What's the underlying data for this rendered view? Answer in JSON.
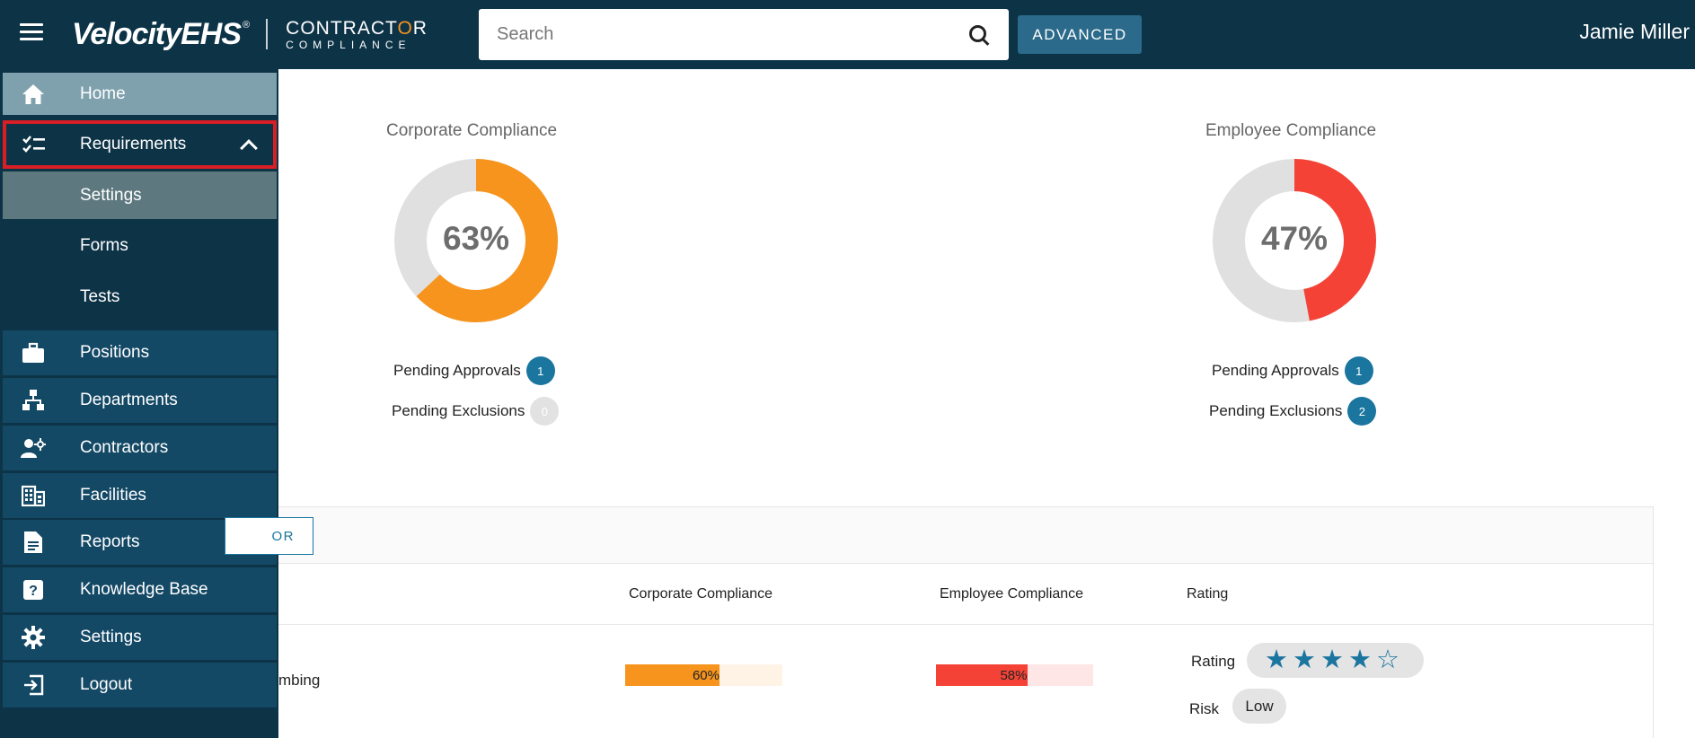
{
  "header": {
    "brand_name": "VelocityEHS",
    "brand_reg": "®",
    "product_line1_a": "CONTRACT",
    "product_line1_b": "O",
    "product_line1_c": "R",
    "product_line2": "COMPLIANCE",
    "search_placeholder": "Search",
    "advanced_label": "ADVANCED",
    "user_name": "Jamie Miller"
  },
  "sidebar": {
    "home": "Home",
    "requirements": "Requirements",
    "sub": {
      "settings": "Settings",
      "forms": "Forms",
      "tests": "Tests"
    },
    "positions": "Positions",
    "departments": "Departments",
    "contractors": "Contractors",
    "facilities": "Facilities",
    "reports": "Reports",
    "knowledge_base": "Knowledge Base",
    "settings": "Settings",
    "logout": "Logout"
  },
  "corporate": {
    "title": "Corporate Compliance",
    "percent_label": "63%",
    "percent": 63,
    "color": "#f7941d",
    "pending_approvals_label": "Pending Approvals",
    "pending_approvals": "1",
    "pending_exclusions_label": "Pending Exclusions",
    "pending_exclusions": "0"
  },
  "employee": {
    "title": "Employee Compliance",
    "percent_label": "47%",
    "percent": 47,
    "color": "#f44336",
    "pending_approvals_label": "Pending Approvals",
    "pending_approvals": "1",
    "pending_exclusions_label": "Pending Exclusions",
    "pending_exclusions": "2"
  },
  "toolbar": {
    "button_fragment": "OR"
  },
  "table": {
    "headers": {
      "corporate": "Corporate Compliance",
      "employee": "Employee Compliance",
      "rating": "Rating"
    },
    "row": {
      "name_fragment": "mbing",
      "corporate_label": "60%",
      "corporate_value": 60,
      "employee_label": "58%",
      "employee_value": 58,
      "rating_label": "Rating",
      "rating_value": 4,
      "rating_max": 5,
      "risk_label": "Risk",
      "risk_value": "Low"
    }
  },
  "colors": {
    "navy": "#0d3347",
    "accent_blue": "#1a759f",
    "orange": "#f7941d",
    "red": "#f44336"
  }
}
